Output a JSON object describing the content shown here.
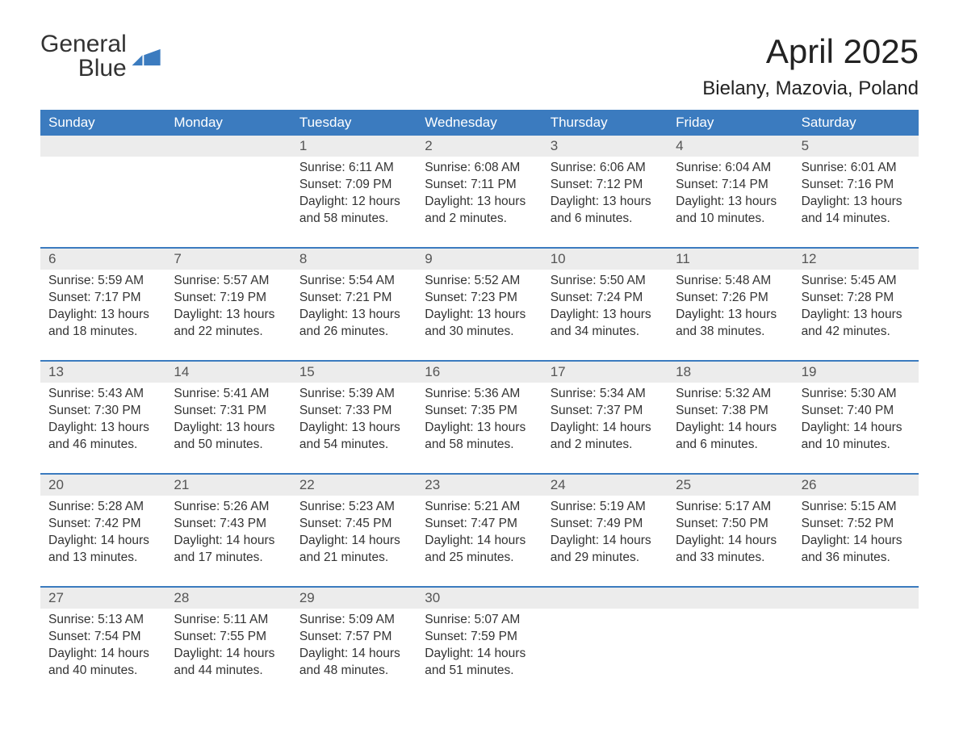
{
  "brand": {
    "word1": "General",
    "word2": "Blue"
  },
  "title": "April 2025",
  "location": "Bielany, Mazovia, Poland",
  "colors": {
    "header_bg": "#3b7bbf",
    "header_text": "#ffffff",
    "daynum_bg": "#ececec",
    "week_border": "#3b7bbf",
    "body_text": "#333333",
    "logo_blue": "#3b7bbf"
  },
  "day_labels": [
    "Sunday",
    "Monday",
    "Tuesday",
    "Wednesday",
    "Thursday",
    "Friday",
    "Saturday"
  ],
  "weeks": [
    [
      null,
      null,
      {
        "n": "1",
        "sunrise": "6:11 AM",
        "sunset": "7:09 PM",
        "dl1": "12 hours",
        "dl2": "and 58 minutes."
      },
      {
        "n": "2",
        "sunrise": "6:08 AM",
        "sunset": "7:11 PM",
        "dl1": "13 hours",
        "dl2": "and 2 minutes."
      },
      {
        "n": "3",
        "sunrise": "6:06 AM",
        "sunset": "7:12 PM",
        "dl1": "13 hours",
        "dl2": "and 6 minutes."
      },
      {
        "n": "4",
        "sunrise": "6:04 AM",
        "sunset": "7:14 PM",
        "dl1": "13 hours",
        "dl2": "and 10 minutes."
      },
      {
        "n": "5",
        "sunrise": "6:01 AM",
        "sunset": "7:16 PM",
        "dl1": "13 hours",
        "dl2": "and 14 minutes."
      }
    ],
    [
      {
        "n": "6",
        "sunrise": "5:59 AM",
        "sunset": "7:17 PM",
        "dl1": "13 hours",
        "dl2": "and 18 minutes."
      },
      {
        "n": "7",
        "sunrise": "5:57 AM",
        "sunset": "7:19 PM",
        "dl1": "13 hours",
        "dl2": "and 22 minutes."
      },
      {
        "n": "8",
        "sunrise": "5:54 AM",
        "sunset": "7:21 PM",
        "dl1": "13 hours",
        "dl2": "and 26 minutes."
      },
      {
        "n": "9",
        "sunrise": "5:52 AM",
        "sunset": "7:23 PM",
        "dl1": "13 hours",
        "dl2": "and 30 minutes."
      },
      {
        "n": "10",
        "sunrise": "5:50 AM",
        "sunset": "7:24 PM",
        "dl1": "13 hours",
        "dl2": "and 34 minutes."
      },
      {
        "n": "11",
        "sunrise": "5:48 AM",
        "sunset": "7:26 PM",
        "dl1": "13 hours",
        "dl2": "and 38 minutes."
      },
      {
        "n": "12",
        "sunrise": "5:45 AM",
        "sunset": "7:28 PM",
        "dl1": "13 hours",
        "dl2": "and 42 minutes."
      }
    ],
    [
      {
        "n": "13",
        "sunrise": "5:43 AM",
        "sunset": "7:30 PM",
        "dl1": "13 hours",
        "dl2": "and 46 minutes."
      },
      {
        "n": "14",
        "sunrise": "5:41 AM",
        "sunset": "7:31 PM",
        "dl1": "13 hours",
        "dl2": "and 50 minutes."
      },
      {
        "n": "15",
        "sunrise": "5:39 AM",
        "sunset": "7:33 PM",
        "dl1": "13 hours",
        "dl2": "and 54 minutes."
      },
      {
        "n": "16",
        "sunrise": "5:36 AM",
        "sunset": "7:35 PM",
        "dl1": "13 hours",
        "dl2": "and 58 minutes."
      },
      {
        "n": "17",
        "sunrise": "5:34 AM",
        "sunset": "7:37 PM",
        "dl1": "14 hours",
        "dl2": "and 2 minutes."
      },
      {
        "n": "18",
        "sunrise": "5:32 AM",
        "sunset": "7:38 PM",
        "dl1": "14 hours",
        "dl2": "and 6 minutes."
      },
      {
        "n": "19",
        "sunrise": "5:30 AM",
        "sunset": "7:40 PM",
        "dl1": "14 hours",
        "dl2": "and 10 minutes."
      }
    ],
    [
      {
        "n": "20",
        "sunrise": "5:28 AM",
        "sunset": "7:42 PM",
        "dl1": "14 hours",
        "dl2": "and 13 minutes."
      },
      {
        "n": "21",
        "sunrise": "5:26 AM",
        "sunset": "7:43 PM",
        "dl1": "14 hours",
        "dl2": "and 17 minutes."
      },
      {
        "n": "22",
        "sunrise": "5:23 AM",
        "sunset": "7:45 PM",
        "dl1": "14 hours",
        "dl2": "and 21 minutes."
      },
      {
        "n": "23",
        "sunrise": "5:21 AM",
        "sunset": "7:47 PM",
        "dl1": "14 hours",
        "dl2": "and 25 minutes."
      },
      {
        "n": "24",
        "sunrise": "5:19 AM",
        "sunset": "7:49 PM",
        "dl1": "14 hours",
        "dl2": "and 29 minutes."
      },
      {
        "n": "25",
        "sunrise": "5:17 AM",
        "sunset": "7:50 PM",
        "dl1": "14 hours",
        "dl2": "and 33 minutes."
      },
      {
        "n": "26",
        "sunrise": "5:15 AM",
        "sunset": "7:52 PM",
        "dl1": "14 hours",
        "dl2": "and 36 minutes."
      }
    ],
    [
      {
        "n": "27",
        "sunrise": "5:13 AM",
        "sunset": "7:54 PM",
        "dl1": "14 hours",
        "dl2": "and 40 minutes."
      },
      {
        "n": "28",
        "sunrise": "5:11 AM",
        "sunset": "7:55 PM",
        "dl1": "14 hours",
        "dl2": "and 44 minutes."
      },
      {
        "n": "29",
        "sunrise": "5:09 AM",
        "sunset": "7:57 PM",
        "dl1": "14 hours",
        "dl2": "and 48 minutes."
      },
      {
        "n": "30",
        "sunrise": "5:07 AM",
        "sunset": "7:59 PM",
        "dl1": "14 hours",
        "dl2": "and 51 minutes."
      },
      null,
      null,
      null
    ]
  ],
  "labels": {
    "sunrise_prefix": "Sunrise: ",
    "sunset_prefix": "Sunset: ",
    "daylight_prefix": "Daylight: "
  }
}
